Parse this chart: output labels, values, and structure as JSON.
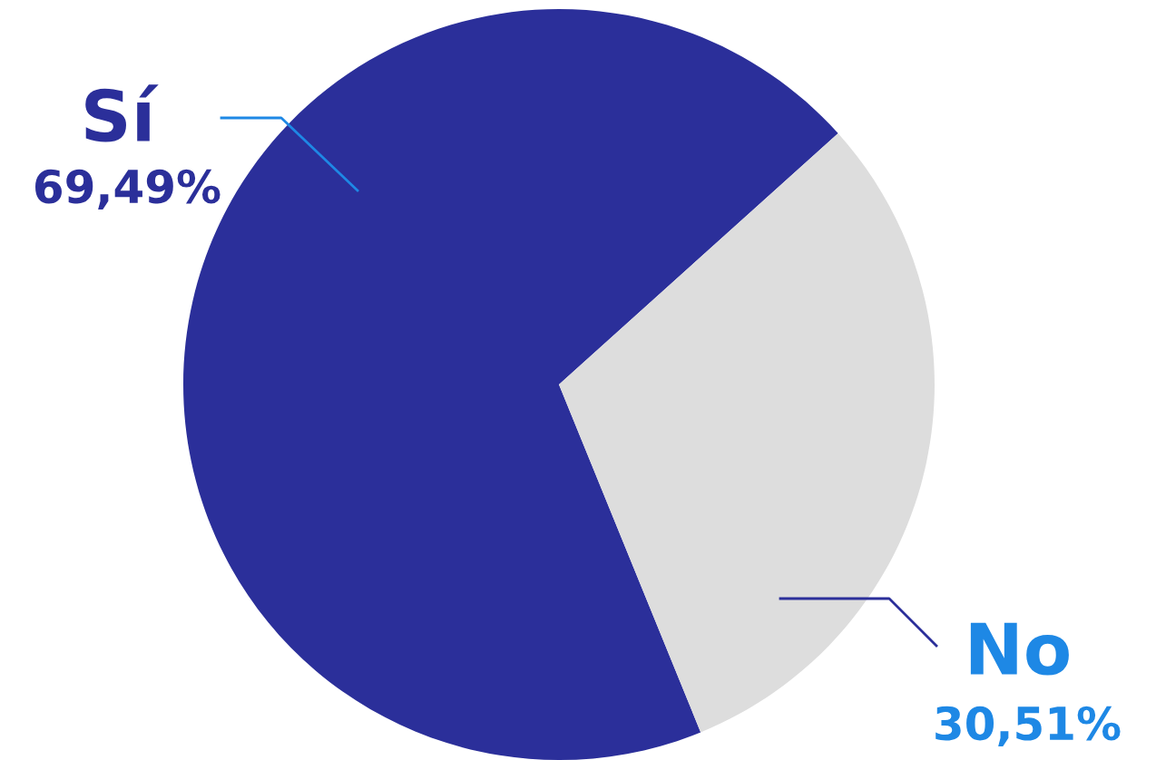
{
  "chart_data": {
    "type": "pie",
    "categories": [
      "Sí",
      "No"
    ],
    "values": [
      69.49,
      30.51
    ],
    "colors": [
      "#2b2f9a",
      "#dddddd"
    ],
    "value_labels": [
      "69,49%",
      "30,51%"
    ]
  }
}
